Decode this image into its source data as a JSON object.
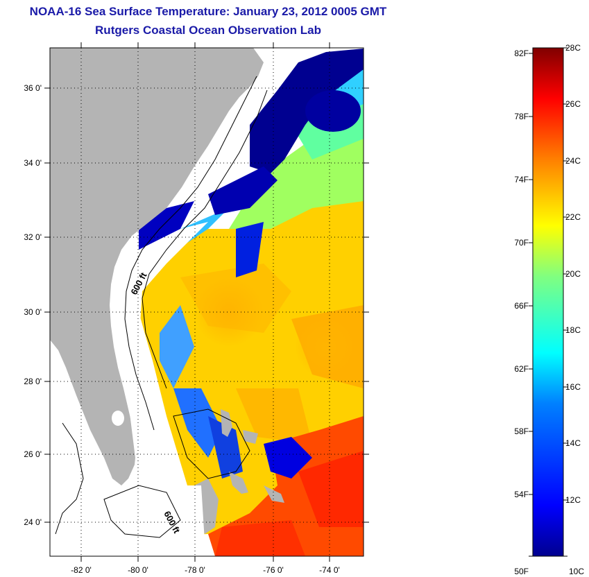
{
  "title": {
    "line1": "NOAA-16 Sea Surface Temperature:  January 23, 2012 0005 GMT",
    "line2": "Rutgers Coastal Ocean Observation Lab"
  },
  "map": {
    "lon_ticks": [
      "-82 0'",
      "-80 0'",
      "-78 0'",
      "-76 0'",
      "-74 0'"
    ],
    "lat_ticks": [
      "36 0'",
      "34 0'",
      "32 0'",
      "30 0'",
      "28 0'",
      "26 0'",
      "24 0'"
    ],
    "contour_labels": [
      "600 ft",
      "600 ft"
    ],
    "land_color": "#b4b4b4",
    "cloud_color": "#ffffff"
  },
  "colorbar": {
    "fahrenheit_labels": [
      "82F",
      "78F",
      "74F",
      "70F",
      "66F",
      "62F",
      "58F",
      "54F",
      "50F"
    ],
    "celsius_labels": [
      "28C",
      "26C",
      "24C",
      "22C",
      "20C",
      "18C",
      "16C",
      "14C",
      "12C",
      "10C"
    ],
    "colors": [
      "#00008f",
      "#0000ff",
      "#0080ff",
      "#00ffff",
      "#80ff80",
      "#ffff00",
      "#ff8000",
      "#ff0000",
      "#800000"
    ]
  }
}
